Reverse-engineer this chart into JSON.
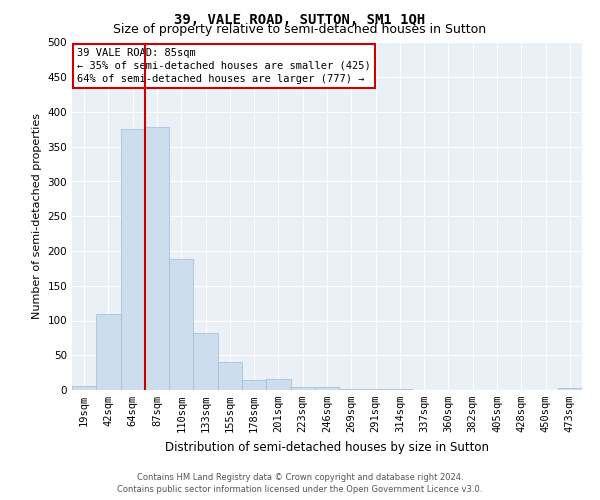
{
  "title": "39, VALE ROAD, SUTTON, SM1 1QH",
  "subtitle": "Size of property relative to semi-detached houses in Sutton",
  "xlabel": "Distribution of semi-detached houses by size in Sutton",
  "ylabel": "Number of semi-detached properties",
  "categories": [
    "19sqm",
    "42sqm",
    "64sqm",
    "87sqm",
    "110sqm",
    "133sqm",
    "155sqm",
    "178sqm",
    "201sqm",
    "223sqm",
    "246sqm",
    "269sqm",
    "291sqm",
    "314sqm",
    "337sqm",
    "360sqm",
    "382sqm",
    "405sqm",
    "428sqm",
    "450sqm",
    "473sqm"
  ],
  "values": [
    6,
    110,
    375,
    378,
    188,
    82,
    40,
    15,
    16,
    5,
    4,
    2,
    1,
    2,
    0,
    0,
    0,
    0,
    0,
    0,
    3
  ],
  "bar_color": "#ccdded",
  "bar_edge_color": "#a0bcd4",
  "annotation_text_line1": "39 VALE ROAD: 85sqm",
  "annotation_text_line2": "← 35% of semi-detached houses are smaller (425)",
  "annotation_text_line3": "64% of semi-detached houses are larger (777) →",
  "annotation_box_color": "#ffffff",
  "annotation_edge_color": "#cc0000",
  "property_line_color": "#cc0000",
  "ylim": [
    0,
    500
  ],
  "yticks": [
    0,
    50,
    100,
    150,
    200,
    250,
    300,
    350,
    400,
    450,
    500
  ],
  "background_color": "#eaf0f6",
  "grid_color": "#ffffff",
  "title_fontsize": 10,
  "subtitle_fontsize": 9,
  "xlabel_fontsize": 8.5,
  "ylabel_fontsize": 8,
  "tick_fontsize": 7.5,
  "annotation_fontsize": 7.5,
  "footer_line1": "Contains HM Land Registry data © Crown copyright and database right 2024.",
  "footer_line2": "Contains public sector information licensed under the Open Government Licence v3.0."
}
